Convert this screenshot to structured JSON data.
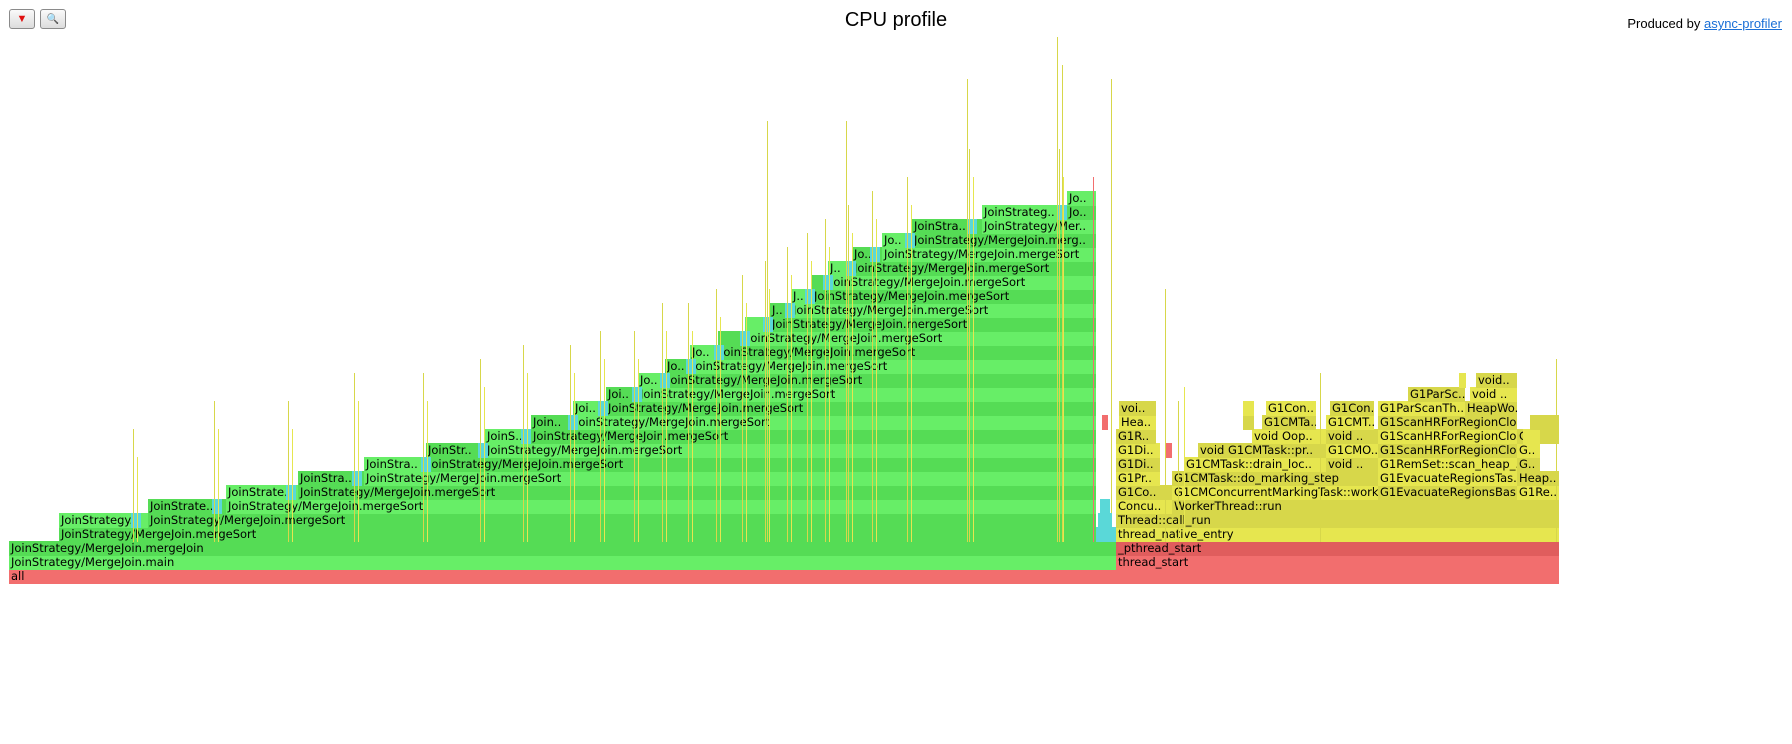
{
  "toolbar": {
    "reverse_icon": "▼",
    "search_icon": "🔍"
  },
  "header": {
    "title": "CPU profile",
    "produced_by": "Produced by",
    "link_text": "async-profiler"
  },
  "colors": {
    "green": "#67ee67",
    "green_alt": "#55dc55",
    "cyan": "#5ad8d8",
    "yellow": "#d7d74a",
    "yellow_alt": "#e6e64f",
    "red": "#f26e6e",
    "red_dark": "#e05d5d"
  },
  "flame": {
    "all": "all",
    "main": "JoinStrategy/MergeJoin.main",
    "merge_join": "JoinStrategy/MergeJoin.mergeJoin",
    "merge_sort": "JoinStrategy/MergeJoin.mergeSort",
    "labels": {
      "js_trunc_1": "JoinStrategy..",
      "js_trunc_2": "JoinStrate..",
      "js_trunc_3": "JoinStrate..",
      "js_trunc_4": "JoinStra..",
      "js_trunc_5": "JoinStra..",
      "js_trunc_6": "JoinStr..",
      "js_trunc_7": "JoinS..",
      "js_trunc_8": "Join..",
      "js_trunc_9": "Joi..",
      "js_trunc_10": "Joi..",
      "js_trunc_11": "Jo..",
      "js_trunc_12": "Jo..",
      "js_trunc_13": "Jo..",
      "js_trunc_14": "J..",
      "js_trunc_15": "J..",
      "js_trunc_16": "J..",
      "js_trunc_17": "J..",
      "js_trunc_18": "Jo..",
      "js_trunc_19": "Jo..",
      "js_trunc_20": "JoinStra..",
      "js_trunc_21": "JoinStrateg..",
      "js_trunc_22": "Jo..",
      "js_merge_trunc_1": "JoinStrategy/MergeJoin.merg..",
      "js_merge_trunc_2": "JoinStrategy/Mer..",
      "thread_start": "thread_start",
      "pthread_start": "_pthread_start",
      "thread_native_entry": "thread_native_entry",
      "thread_call_run": "Thread::call_run",
      "worker_run": "WorkerThread::run",
      "concu": "Concu..",
      "g1co": "G1Co..",
      "g1pr": "G1Pr..",
      "g1di_1": "G1Di..",
      "g1di_2": "G1Di..",
      "g1r": "G1R..",
      "hea": "Hea..",
      "voi": "voi..",
      "marking_work": "G1CMConcurrentMarkingTask::work",
      "do_marking_step": "G1CMTask::do_marking_step",
      "drain_loc": "G1CMTask::drain_loc..",
      "void_g1cm": "void G1CMTask::pr..",
      "void_oop": "void Oop..",
      "g1cmta": "G1CMTa..",
      "g1con_1": "G1Con..",
      "void_1": "void ..",
      "void_2": "void ..",
      "g1cmo": "G1CMO..",
      "g1cmt": "G1CMT..",
      "g1con_2": "G1Con..",
      "evac_bas": "G1EvacuateRegionsBas..",
      "evac_tas": "G1EvacuateRegionsTas..",
      "rem_set": "G1RemSet::scan_heap_..",
      "scan_1": "G1ScanHRForRegionClo..",
      "scan_2": "G1ScanHRForRegionClo..",
      "scan_3": "G1ScanHRForRegionClo..",
      "parscan": "G1ParScanTh..",
      "heapwo": "HeapWo..",
      "g1parsc": "G1ParSc..",
      "void_3": "void ..",
      "void_4": "void..",
      "g1re": "G1Re..",
      "heap": "Heap..",
      "g_1": "G..",
      "g_2": "G..",
      "g_3": "G.."
    }
  }
}
